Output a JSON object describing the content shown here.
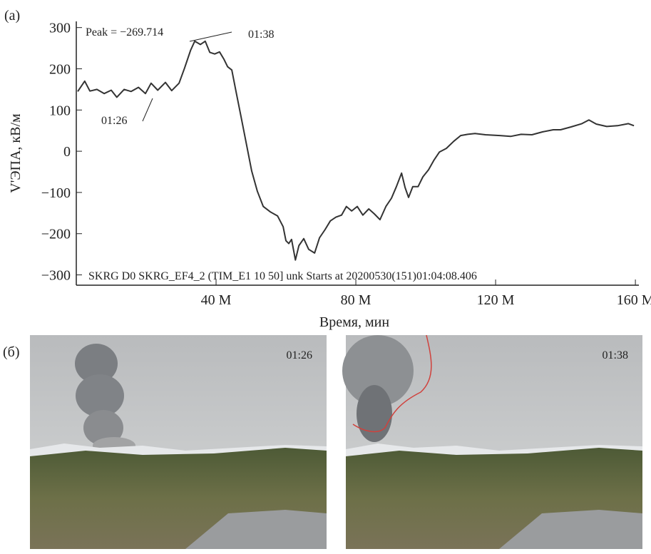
{
  "panel_labels": [
    "(a)",
    "(б)"
  ],
  "chart_data": {
    "type": "line",
    "xlabel": "Время, мин",
    "ylabel": "V'ЭПА, кВ/м",
    "annotations": [
      "Peak = −269.714",
      "01:38",
      "01:26",
      "SKRG D0 SKRG_EF4_2 (TIM_E1 10 50] unk Starts at 20200530(151)01:04:08.406"
    ],
    "color": "#333333",
    "grid": false,
    "xlim": [
      0,
      161
    ],
    "ylim": [
      -325,
      315
    ],
    "xticks": [
      {
        "value": 40,
        "label": "40 M"
      },
      {
        "value": 80,
        "label": "80 M"
      },
      {
        "value": 120,
        "label": "120 M"
      },
      {
        "value": 160,
        "label": "160 M"
      }
    ],
    "yticks": [
      {
        "value": -300,
        "label": "−300"
      },
      {
        "value": -200,
        "label": "−200"
      },
      {
        "value": -100,
        "label": "−100"
      },
      0,
      100,
      200,
      300
    ],
    "x": [
      0.4,
      2.4,
      3.9,
      5.9,
      8,
      10,
      11.6,
      13.7,
      15.7,
      17.8,
      19.8,
      21.4,
      23.3,
      25.5,
      27.3,
      29.4,
      31,
      32.7,
      33.9,
      35.5,
      36.9,
      38.2,
      39.6,
      41,
      42.2,
      43.3,
      44.5,
      45.7,
      47.1,
      48.8,
      50.2,
      51.8,
      53.5,
      55.5,
      57.6,
      59.2,
      60,
      60.8,
      61.6,
      62.7,
      63.7,
      65.1,
      66.5,
      68.2,
      69.6,
      71.2,
      72.7,
      74.3,
      75.9,
      77.3,
      78.8,
      80.4,
      82,
      83.7,
      85.3,
      86.9,
      88.6,
      90.2,
      91.6,
      93.1,
      94.1,
      95.1,
      96.3,
      97.8,
      99.2,
      100.8,
      102.4,
      103.9,
      105.9,
      108,
      110,
      112,
      114.1,
      117.1,
      121.2,
      124.3,
      127.3,
      130.4,
      133.5,
      136.5,
      138.6,
      141.6,
      144.7,
      146.7,
      148.8,
      151.8,
      154.9,
      158,
      159.6
    ],
    "values": [
      145,
      170,
      146,
      150,
      140,
      148,
      131,
      150,
      145,
      155,
      140,
      165,
      148,
      167,
      147,
      165,
      202,
      245,
      267,
      259,
      267,
      240,
      236,
      241,
      224,
      205,
      197,
      145,
      86,
      12,
      -48,
      -97,
      -134,
      -147,
      -157,
      -183,
      -217,
      -224,
      -214,
      -264,
      -229,
      -212,
      -238,
      -247,
      -210,
      -190,
      -169,
      -160,
      -155,
      -134,
      -145,
      -134,
      -155,
      -140,
      -152,
      -166,
      -134,
      -114,
      -86,
      -53,
      -88,
      -112,
      -86,
      -86,
      -62,
      -45,
      -21,
      -2,
      7,
      24,
      38,
      41,
      43,
      40,
      38,
      36,
      41,
      40,
      47,
      52,
      52,
      59,
      67,
      76,
      66,
      60,
      62,
      67,
      62
    ]
  },
  "photos": {
    "timestamps": [
      "01:26",
      "01:38"
    ]
  }
}
